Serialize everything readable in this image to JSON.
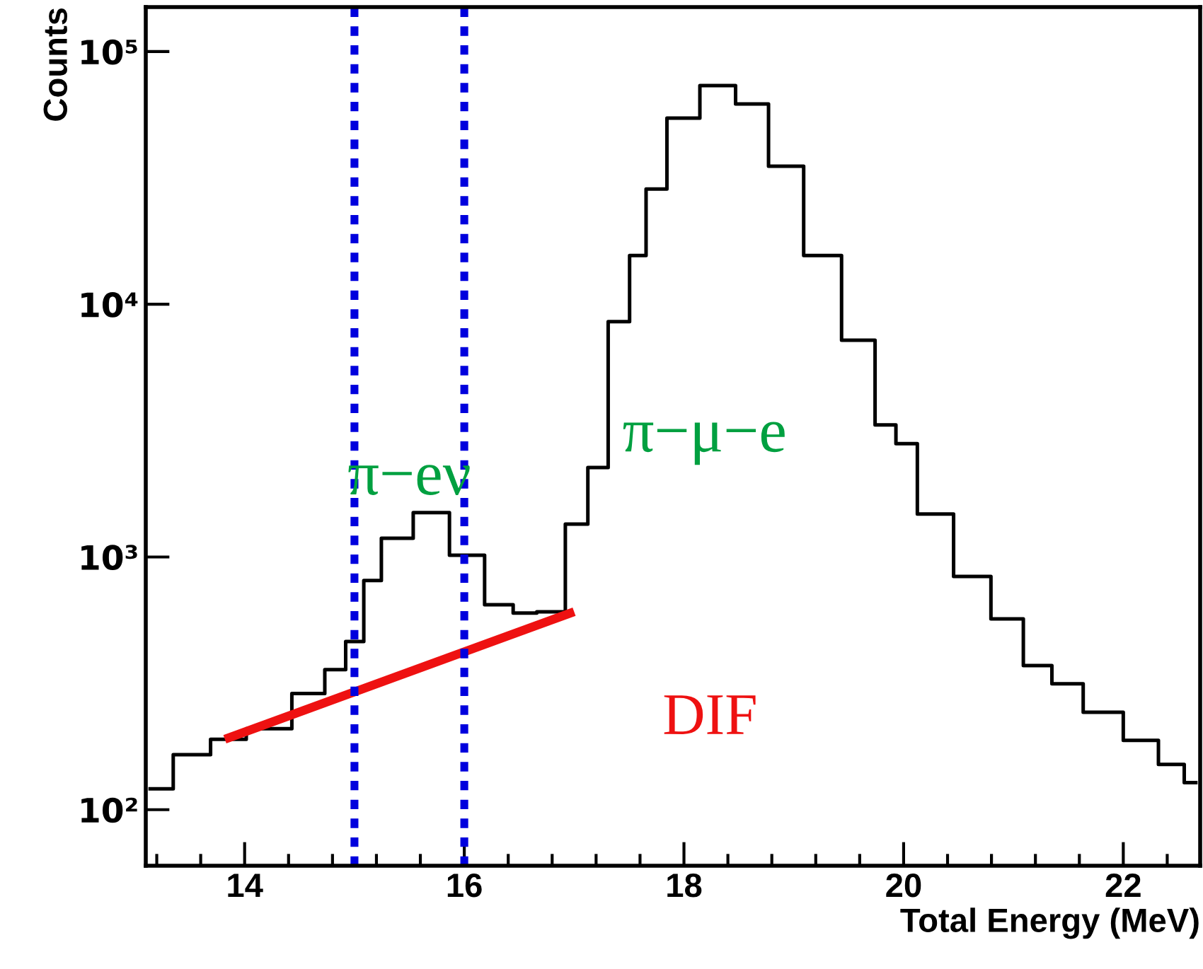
{
  "chart_data": {
    "type": "step",
    "xlabel": "Total Energy (MeV)",
    "ylabel": "Counts",
    "log": "y",
    "xlim": [
      13.1,
      22.7
    ],
    "xticks": [
      14,
      16,
      18,
      20,
      22
    ],
    "ylim": [
      60,
      150000
    ],
    "yticks": [
      {
        "value": 100,
        "label": "10²"
      },
      {
        "value": 1000,
        "label": "10³"
      },
      {
        "value": 10000,
        "label": "10⁴"
      },
      {
        "value": 100000,
        "label": "10⁵"
      }
    ],
    "grid": false,
    "legend": false,
    "series": [
      {
        "color": "#000000",
        "x": [
          13.14,
          13.56,
          13.82,
          14.21,
          14.65,
          14.81,
          15.03,
          15.14,
          15.35,
          15.72,
          16.01,
          16.36,
          16.53,
          16.79,
          17.05,
          17.2,
          17.42,
          17.59,
          17.72,
          17.97,
          18.32,
          18.62,
          18.92,
          19.26,
          19.61,
          19.87,
          19.99,
          20.26,
          20.65,
          20.94,
          21.24,
          21.46,
          21.81,
          22.19,
          22.45,
          22.66
        ],
        "values": [
          121,
          165,
          190,
          209,
          288,
          358,
          463,
          807,
          1186,
          1497,
          1016,
          647,
          600,
          607,
          1349,
          2260,
          8530,
          15600,
          28600,
          54500,
          73300,
          62000,
          35200,
          15600,
          7210,
          3330,
          2810,
          1480,
          838,
          569,
          372,
          315,
          243,
          188,
          151,
          128
        ]
      },
      {
        "type": "line",
        "name": "DIF",
        "color": "#ee1111",
        "x": [
          13.82,
          17.0
        ],
        "values": [
          190,
          607
        ]
      }
    ],
    "ref_lines": [
      {
        "axis": "x",
        "value": 15.0,
        "color": "#0000dd",
        "line_style": "dotted"
      },
      {
        "axis": "x",
        "value": 16.0,
        "color": "#0000dd",
        "line_style": "dotted"
      }
    ],
    "annotations": [
      "π−eν",
      "π−μ−e"
    ]
  }
}
